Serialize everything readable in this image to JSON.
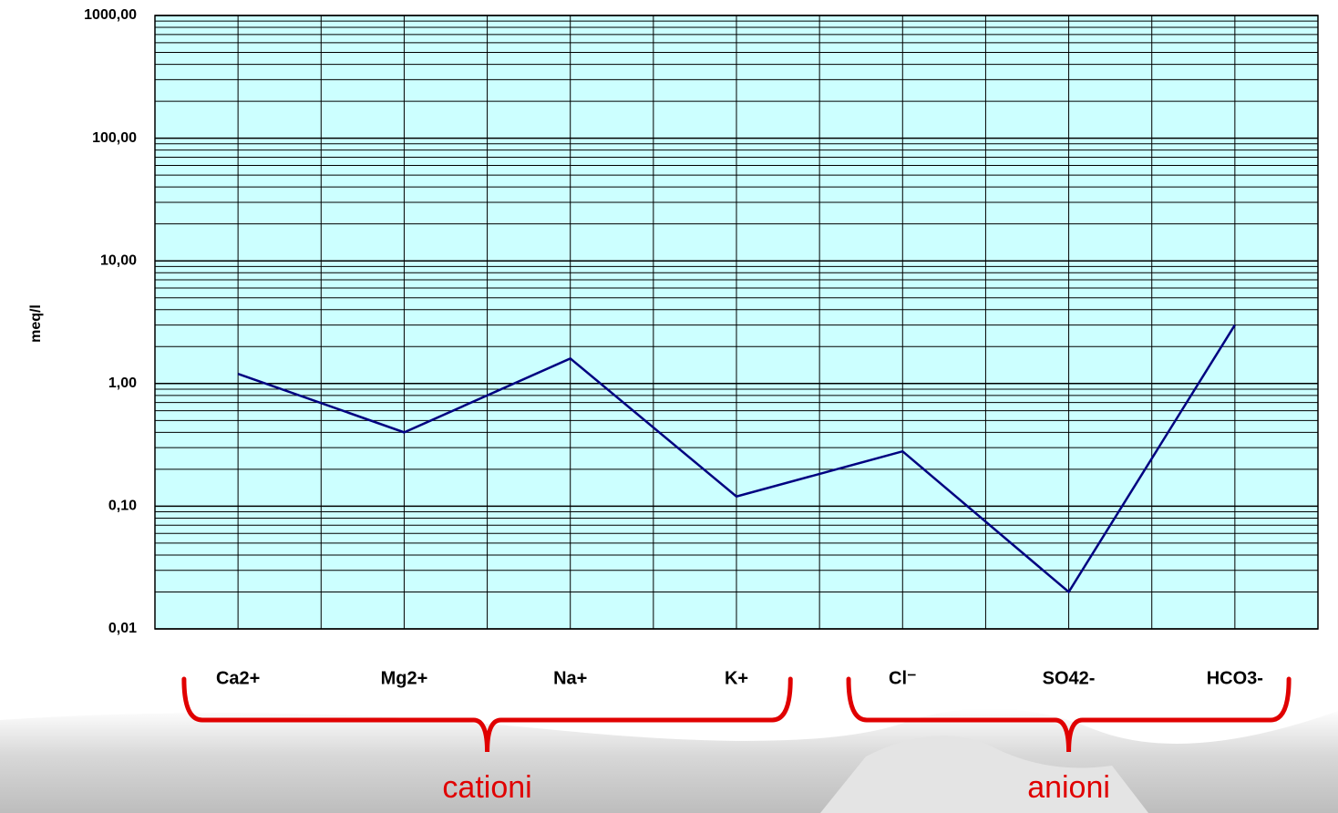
{
  "chart_data": {
    "type": "line",
    "y_label": "meq/l",
    "categories": [
      "Ca2+",
      "Mg2+",
      "Na+",
      "K+",
      "Cl⁻",
      "SO42-",
      "HCO3-"
    ],
    "series": [
      {
        "color": "#000080",
        "values": [
          1.2,
          0.4,
          1.6,
          0.12,
          0.28,
          0.02,
          3.0
        ]
      }
    ],
    "log_y": true,
    "ylim": [
      0.01,
      1000
    ],
    "yticks": [
      {
        "value": 0.01,
        "label": "0,01"
      },
      {
        "value": 0.1,
        "label": "0,10"
      },
      {
        "value": 1,
        "label": "1,00"
      },
      {
        "value": 10,
        "label": "10,00"
      },
      {
        "value": 100,
        "label": "100,00"
      },
      {
        "value": 1000,
        "label": "1000,00"
      }
    ],
    "grid": true,
    "minor_grid": true,
    "plot_color": "#ccffff",
    "annotations": [
      {
        "text": "cationi",
        "from": 0,
        "to": 3
      },
      {
        "text": "anioni",
        "from": 4,
        "to": 6
      }
    ],
    "annotation_color": "#e00000"
  }
}
